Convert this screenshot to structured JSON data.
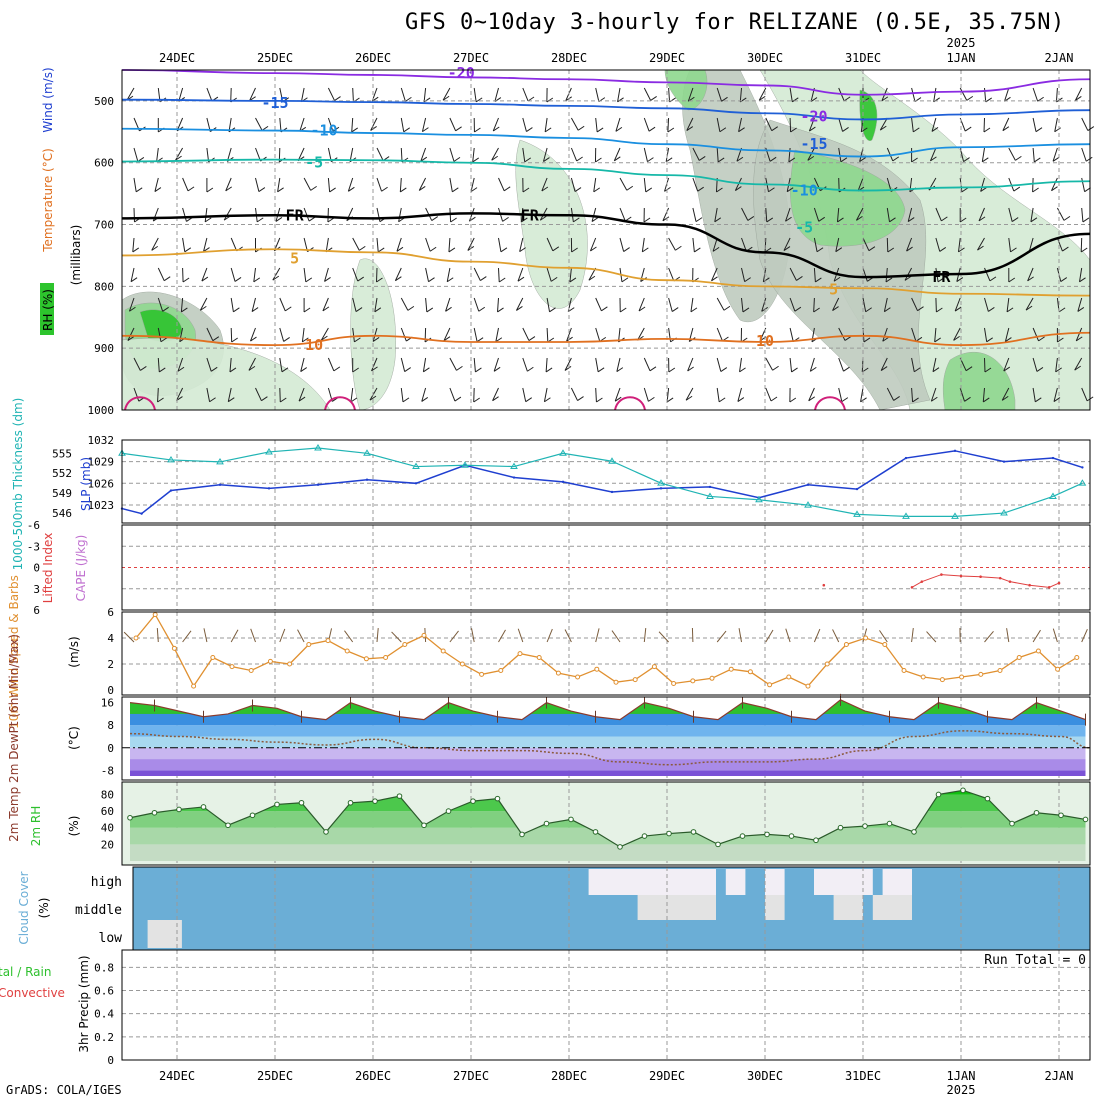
{
  "title": "GFS 0~10day 3-hourly for RELIZANE (0.5E, 35.75N)",
  "footer": "GrADS: COLA/IGES",
  "time_axis": {
    "dates": [
      "24DEC",
      "25DEC",
      "26DEC",
      "27DEC",
      "28DEC",
      "29DEC",
      "30DEC",
      "31DEC",
      "1JAN",
      "2JAN"
    ],
    "year_label": "2025",
    "year_under": "1JAN"
  },
  "colors": {
    "rh_dark": "#2dc42d",
    "rh_mid": "#8fd88f",
    "rh_light": "#d4ead4",
    "rh_gray": "#bfcbbf",
    "temp_cold": "#8a2be2",
    "temp_mid": "#1f5fd6",
    "temp_cyan": "#16b8a8",
    "freezing": "#000000",
    "temp_warm": "#e0a030",
    "temp_hot": "#e07020",
    "slp": "#1f3fd0",
    "thickness": "#20b4b4",
    "lifted": "#e04040",
    "wind_speed": "#e09030",
    "cloud_bg": "#6baed6",
    "cloud_clear": "#f2eef5",
    "temp_fill": "#2ec02e",
    "dew_line": "#8b5a3c"
  },
  "panels": {
    "upper": {
      "ylabel_parts": [
        "RH (%)",
        "Temperature (°C)",
        "Wind (m/s)"
      ],
      "ylabel2": "(millibars)"
    },
    "slp": {
      "ylabel1": "1000-500mb Thickness (dm)",
      "ylabel2": "SLP (mb)"
    },
    "lifted": {
      "ylabel1": "Lifted Index",
      "ylabel2": "CAPE (J/kg)"
    },
    "wind": {
      "ylabel": "10m Wind Speed & Barbs",
      "units": "(m/s)"
    },
    "temp": {
      "ylabel": "2m Temp 2m DewPt (6hr Min/Max)",
      "units": "(°C)"
    },
    "rh": {
      "ylabel": "2m RH",
      "units": "(%)"
    },
    "cloud": {
      "ylabel": "Cloud Cover",
      "units": "(%)",
      "levels": [
        "high",
        "middle",
        "low"
      ]
    },
    "precip": {
      "ylabel_a": "tal / Rain",
      "ylabel_b": "Convective",
      "ylabel_c": "3hr Precip (mm)",
      "run_total": "Run Total = 0"
    }
  },
  "chart_data": [
    {
      "type": "line",
      "panel": "upper-air time-height",
      "y_axis": {
        "unit": "mb",
        "ticks": [
          500,
          600,
          700,
          800,
          900,
          1000
        ],
        "reversed": true
      },
      "series": [
        {
          "name": "-20",
          "x": [
            0,
            1,
            2,
            3,
            4,
            5,
            6,
            7,
            8,
            9.3
          ],
          "values": [
            450,
            455,
            458,
            462,
            465,
            470,
            475,
            490,
            485,
            465
          ]
        },
        {
          "name": "-15",
          "x": [
            0,
            1,
            2,
            3,
            4,
            5,
            6,
            7,
            8,
            9.3
          ],
          "values": [
            498,
            500,
            502,
            505,
            508,
            512,
            520,
            530,
            522,
            515
          ]
        },
        {
          "name": "-10",
          "x": [
            0,
            1,
            2,
            3,
            4,
            5,
            6,
            7,
            8,
            9.3
          ],
          "values": [
            545,
            548,
            552,
            555,
            560,
            570,
            580,
            590,
            575,
            570
          ]
        },
        {
          "name": "-5",
          "x": [
            0,
            1,
            2,
            3,
            4,
            5,
            6,
            7,
            8,
            9.3
          ],
          "values": [
            598,
            595,
            596,
            600,
            610,
            620,
            635,
            645,
            640,
            630
          ]
        },
        {
          "name": "FR",
          "x": [
            0,
            1,
            2,
            3,
            4,
            5,
            6,
            7,
            8,
            9.3
          ],
          "values": [
            690,
            685,
            690,
            682,
            685,
            700,
            745,
            785,
            780,
            715
          ]
        },
        {
          "name": "5",
          "x": [
            0,
            1,
            2,
            3,
            4,
            5,
            6,
            7,
            8,
            9.3
          ],
          "values": [
            750,
            740,
            745,
            760,
            770,
            790,
            800,
            803,
            812,
            815
          ]
        },
        {
          "name": "10",
          "x": [
            0,
            1,
            2,
            3,
            4,
            5,
            6,
            7,
            8,
            9.3
          ],
          "values": [
            880,
            895,
            880,
            890,
            890,
            885,
            890,
            880,
            895,
            875
          ]
        }
      ],
      "labels": [
        {
          "text": "-20",
          "x": 2.9,
          "y": 455
        },
        {
          "text": "-15",
          "x": 1.0,
          "y": 503
        },
        {
          "text": "-10",
          "x": 1.5,
          "y": 548
        },
        {
          "text": "-5",
          "x": 1.4,
          "y": 600
        },
        {
          "text": "FR",
          "x": 1.2,
          "y": 685
        },
        {
          "text": "FR",
          "x": 3.6,
          "y": 685
        },
        {
          "text": "FR",
          "x": 7.8,
          "y": 785
        },
        {
          "text": "5",
          "x": 1.2,
          "y": 755
        },
        {
          "text": "5",
          "x": 6.7,
          "y": 805
        },
        {
          "text": "10",
          "x": 1.4,
          "y": 895
        },
        {
          "text": "10",
          "x": 6.0,
          "y": 888
        },
        {
          "text": "-20",
          "x": 6.5,
          "y": 525
        },
        {
          "text": "-15",
          "x": 6.5,
          "y": 570
        },
        {
          "text": "-10",
          "x": 6.4,
          "y": 645
        },
        {
          "text": "-5",
          "x": 6.4,
          "y": 705
        }
      ]
    },
    {
      "type": "line",
      "panel": "SLP and thickness",
      "y_axis_left": {
        "unit": "dm",
        "ticks": [
          546,
          549,
          552,
          555
        ]
      },
      "y_axis_right": {
        "unit": "mb",
        "ticks": [
          1023,
          1026,
          1029,
          1032
        ]
      },
      "series": [
        {
          "name": "SLP",
          "axis": "right",
          "x": [
            0,
            0.2,
            0.5,
            1,
            1.5,
            2,
            2.5,
            3,
            3.5,
            4,
            4.5,
            5,
            5.5,
            6,
            6.5,
            7,
            7.5,
            8,
            8.5,
            9,
            9.5,
            9.8
          ],
          "values": [
            1022.5,
            1021.8,
            1025.0,
            1025.8,
            1025.3,
            1025.8,
            1026.5,
            1026.0,
            1028.5,
            1026.8,
            1026.2,
            1024.8,
            1025.3,
            1025.5,
            1024.0,
            1025.8,
            1025.2,
            1029.5,
            1030.5,
            1029.0,
            1029.5,
            1028.2
          ]
        },
        {
          "name": "Thickness",
          "axis": "left",
          "x": [
            0,
            0.5,
            1,
            1.5,
            2,
            2.5,
            3,
            3.5,
            4,
            4.5,
            5,
            5.5,
            6,
            6.5,
            7,
            7.5,
            8,
            8.5,
            9,
            9.5,
            9.8
          ],
          "values": [
            555.0,
            554.0,
            553.7,
            555.2,
            555.8,
            555.0,
            553.0,
            553.2,
            553.0,
            555.0,
            553.8,
            550.5,
            548.5,
            548.0,
            547.2,
            545.8,
            545.5,
            545.5,
            546.0,
            548.5,
            550.5
          ]
        }
      ]
    },
    {
      "type": "line",
      "panel": "Lifted index / CAPE",
      "y_axis": {
        "ticks": [
          -6,
          -3,
          0,
          3,
          6
        ],
        "reversed": true
      },
      "series": [
        {
          "name": "Lifted Index",
          "x": [
            6.6,
            7.5,
            7.6,
            7.8,
            8.0,
            8.2,
            8.4,
            8.5,
            8.7,
            8.9,
            9.0
          ],
          "values": [
            2.5,
            2.8,
            2.0,
            1.0,
            1.2,
            1.3,
            1.5,
            2.0,
            2.5,
            2.8,
            2.2
          ]
        }
      ]
    },
    {
      "type": "line",
      "panel": "10m wind speed",
      "y_axis": {
        "unit": "m/s",
        "ticks": [
          0,
          2,
          4,
          6
        ]
      },
      "series": [
        {
          "name": "10m Wind Speed",
          "x": [
            0,
            0.2,
            0.4,
            0.6,
            0.8,
            1,
            1.2,
            1.4,
            1.6,
            1.8,
            2,
            2.2,
            2.4,
            2.6,
            2.8,
            3,
            3.2,
            3.4,
            3.6,
            3.8,
            4,
            4.2,
            4.4,
            4.6,
            4.8,
            5,
            5.2,
            5.4,
            5.6,
            5.8,
            6,
            6.2,
            6.4,
            6.6,
            6.8,
            7,
            7.2,
            7.4,
            7.6,
            7.8,
            8,
            8.2,
            8.4,
            8.6,
            8.8,
            9,
            9.2,
            9.4,
            9.6,
            9.8
          ],
          "values": [
            4.0,
            5.8,
            3.2,
            0.3,
            2.5,
            1.8,
            1.5,
            2.2,
            2.0,
            3.5,
            3.8,
            3.0,
            2.4,
            2.5,
            3.5,
            4.2,
            3.0,
            2.0,
            1.2,
            1.5,
            2.8,
            2.5,
            1.3,
            1.0,
            1.6,
            0.6,
            0.8,
            1.8,
            0.5,
            0.7,
            0.9,
            1.6,
            1.4,
            0.4,
            1.0,
            0.3,
            2.0,
            3.5,
            4.0,
            3.5,
            1.5,
            1.0,
            0.8,
            1.0,
            1.2,
            1.5,
            2.5,
            3.0,
            1.6,
            2.5
          ]
        }
      ]
    },
    {
      "type": "area",
      "panel": "2m temperature / dewpoint",
      "y_axis": {
        "unit": "°C",
        "ticks": [
          -8,
          0,
          8,
          16
        ]
      },
      "series": [
        {
          "name": "2m Temp",
          "x": [
            0,
            0.25,
            0.5,
            0.75,
            1,
            1.25,
            1.5,
            1.75,
            2,
            2.25,
            2.5,
            2.75,
            3,
            3.25,
            3.5,
            3.75,
            4,
            4.25,
            4.5,
            4.75,
            5,
            5.25,
            5.5,
            5.75,
            6,
            6.25,
            6.5,
            6.75,
            7,
            7.25,
            7.5,
            7.75,
            8,
            8.25,
            8.5,
            8.75,
            9,
            9.25,
            9.5,
            9.75
          ],
          "values": [
            16,
            15,
            13,
            11,
            12,
            15,
            14,
            11,
            10,
            16,
            13,
            11,
            10,
            16,
            13,
            11,
            10,
            16,
            13,
            11,
            10,
            16,
            14,
            11,
            10,
            16,
            14,
            11,
            10,
            17,
            13,
            11,
            10,
            16,
            14,
            11,
            10,
            16,
            13,
            10
          ]
        },
        {
          "name": "2m DewPt",
          "x": [
            0,
            0.5,
            1,
            1.5,
            2,
            2.5,
            3,
            3.5,
            4,
            4.5,
            5,
            5.5,
            6,
            6.5,
            7,
            7.5,
            8,
            8.5,
            9,
            9.5,
            9.8
          ],
          "values": [
            5,
            4,
            3,
            2,
            1,
            3,
            0,
            -1,
            -1,
            -2,
            -5,
            -6,
            -5,
            -5,
            -4,
            -1,
            4,
            6,
            5,
            4,
            0
          ]
        }
      ]
    },
    {
      "type": "area",
      "panel": "2m relative humidity",
      "y_axis": {
        "unit": "%",
        "ticks": [
          20,
          40,
          60,
          80
        ]
      },
      "series": [
        {
          "name": "2m RH",
          "x": [
            0,
            0.25,
            0.5,
            0.75,
            1,
            1.25,
            1.5,
            1.75,
            2,
            2.25,
            2.5,
            2.75,
            3,
            3.25,
            3.5,
            3.75,
            4,
            4.25,
            4.5,
            4.75,
            5,
            5.25,
            5.5,
            5.75,
            6,
            6.25,
            6.5,
            6.75,
            7,
            7.25,
            7.5,
            7.75,
            8,
            8.25,
            8.5,
            8.75,
            9,
            9.25,
            9.5,
            9.75
          ],
          "values": [
            52,
            58,
            62,
            65,
            43,
            55,
            68,
            70,
            35,
            70,
            72,
            78,
            43,
            60,
            72,
            75,
            32,
            45,
            50,
            35,
            17,
            30,
            33,
            35,
            20,
            30,
            32,
            30,
            25,
            40,
            42,
            45,
            35,
            80,
            85,
            75,
            45,
            58,
            55,
            50
          ]
        }
      ]
    },
    {
      "type": "heatmap",
      "panel": "cloud cover",
      "levels": [
        "high",
        "middle",
        "low"
      ],
      "clear_blocks": [
        {
          "level": "high",
          "x0": 4.2,
          "x1": 5.5
        },
        {
          "level": "high",
          "x0": 5.6,
          "x1": 5.8
        },
        {
          "level": "high",
          "x0": 6.0,
          "x1": 6.2
        },
        {
          "level": "high",
          "x0": 6.5,
          "x1": 7.1
        },
        {
          "level": "high",
          "x0": 7.2,
          "x1": 7.5
        },
        {
          "level": "high",
          "x0": 9.7,
          "x1": 9.85
        },
        {
          "level": "middle",
          "x0": 4.7,
          "x1": 5.5
        },
        {
          "level": "middle",
          "x0": 6.0,
          "x1": 6.2
        },
        {
          "level": "middle",
          "x0": 6.7,
          "x1": 7.0
        },
        {
          "level": "middle",
          "x0": 7.1,
          "x1": 7.5
        },
        {
          "level": "low",
          "x0": -0.3,
          "x1": 0.05
        }
      ]
    },
    {
      "type": "bar",
      "panel": "3hr precipitation",
      "y_axis": {
        "unit": "mm",
        "ticks": [
          0,
          0.2,
          0.4,
          0.6,
          0.8
        ]
      },
      "values": []
    }
  ]
}
